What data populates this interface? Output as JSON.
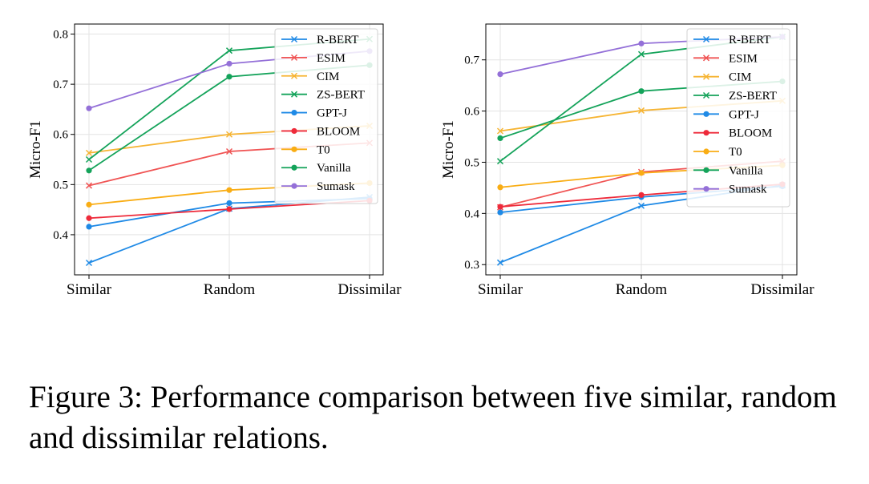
{
  "figure": {
    "caption": "Figure 3: Performance comparison between five similar, random and dissimilar relations."
  },
  "chart_data": [
    {
      "type": "line",
      "categories": [
        "Similar",
        "Random",
        "Dissimilar"
      ],
      "xlabel": "",
      "ylabel": "Micro-F1",
      "ylim": [
        0.32,
        0.82
      ],
      "yticks": [
        0.4,
        0.5,
        0.6,
        0.7,
        0.8
      ],
      "ytick_labels": [
        "0.4",
        "0.5",
        "0.6",
        "0.7",
        "0.8"
      ],
      "grid": true,
      "legend_position": "top-right",
      "series": [
        {
          "name": "R-BERT",
          "color": "#1f8ae6",
          "marker": "x",
          "values": [
            0.344,
            0.452,
            0.475
          ]
        },
        {
          "name": "ESIM",
          "color": "#f05454",
          "marker": "x",
          "values": [
            0.498,
            0.566,
            0.583
          ]
        },
        {
          "name": "CIM",
          "color": "#f6b432",
          "marker": "x",
          "values": [
            0.563,
            0.6,
            0.617
          ]
        },
        {
          "name": "ZS-BERT",
          "color": "#14a35a",
          "marker": "x",
          "values": [
            0.55,
            0.767,
            0.79
          ]
        },
        {
          "name": "GPT-J",
          "color": "#1f8ae6",
          "marker": "o",
          "values": [
            0.416,
            0.463,
            0.472
          ]
        },
        {
          "name": "BLOOM",
          "color": "#ee2a3a",
          "marker": "o",
          "values": [
            0.433,
            0.451,
            0.468
          ]
        },
        {
          "name": "T0",
          "color": "#f9ad14",
          "marker": "o",
          "values": [
            0.46,
            0.489,
            0.503
          ]
        },
        {
          "name": "Vanilla",
          "color": "#14a35a",
          "marker": "o",
          "values": [
            0.528,
            0.715,
            0.738
          ]
        },
        {
          "name": "Sumask",
          "color": "#9470d8",
          "marker": "o",
          "values": [
            0.652,
            0.741,
            0.766
          ]
        }
      ]
    },
    {
      "type": "line",
      "categories": [
        "Similar",
        "Random",
        "Dissimilar"
      ],
      "xlabel": "",
      "ylabel": "Micro-F1",
      "ylim": [
        0.28,
        0.77
      ],
      "yticks": [
        0.3,
        0.4,
        0.5,
        0.6,
        0.7
      ],
      "ytick_labels": [
        "0.3",
        "0.4",
        "0.5",
        "0.6",
        "0.7"
      ],
      "grid": true,
      "legend_position": "top-right",
      "series": [
        {
          "name": "R-BERT",
          "color": "#1f8ae6",
          "marker": "x",
          "values": [
            0.304,
            0.415,
            0.455
          ]
        },
        {
          "name": "ESIM",
          "color": "#f05454",
          "marker": "x",
          "values": [
            0.412,
            0.481,
            0.502
          ]
        },
        {
          "name": "CIM",
          "color": "#f6b432",
          "marker": "x",
          "values": [
            0.561,
            0.601,
            0.62
          ]
        },
        {
          "name": "ZS-BERT",
          "color": "#14a35a",
          "marker": "x",
          "values": [
            0.502,
            0.711,
            0.745
          ]
        },
        {
          "name": "GPT-J",
          "color": "#1f8ae6",
          "marker": "o",
          "values": [
            0.402,
            0.432,
            0.453
          ]
        },
        {
          "name": "BLOOM",
          "color": "#ee2a3a",
          "marker": "o",
          "values": [
            0.413,
            0.436,
            0.457
          ]
        },
        {
          "name": "T0",
          "color": "#f9ad14",
          "marker": "o",
          "values": [
            0.451,
            0.479,
            0.494
          ]
        },
        {
          "name": "Vanilla",
          "color": "#14a35a",
          "marker": "o",
          "values": [
            0.547,
            0.639,
            0.658
          ]
        },
        {
          "name": "Sumask",
          "color": "#9470d8",
          "marker": "o",
          "values": [
            0.672,
            0.732,
            0.745
          ]
        }
      ]
    }
  ]
}
